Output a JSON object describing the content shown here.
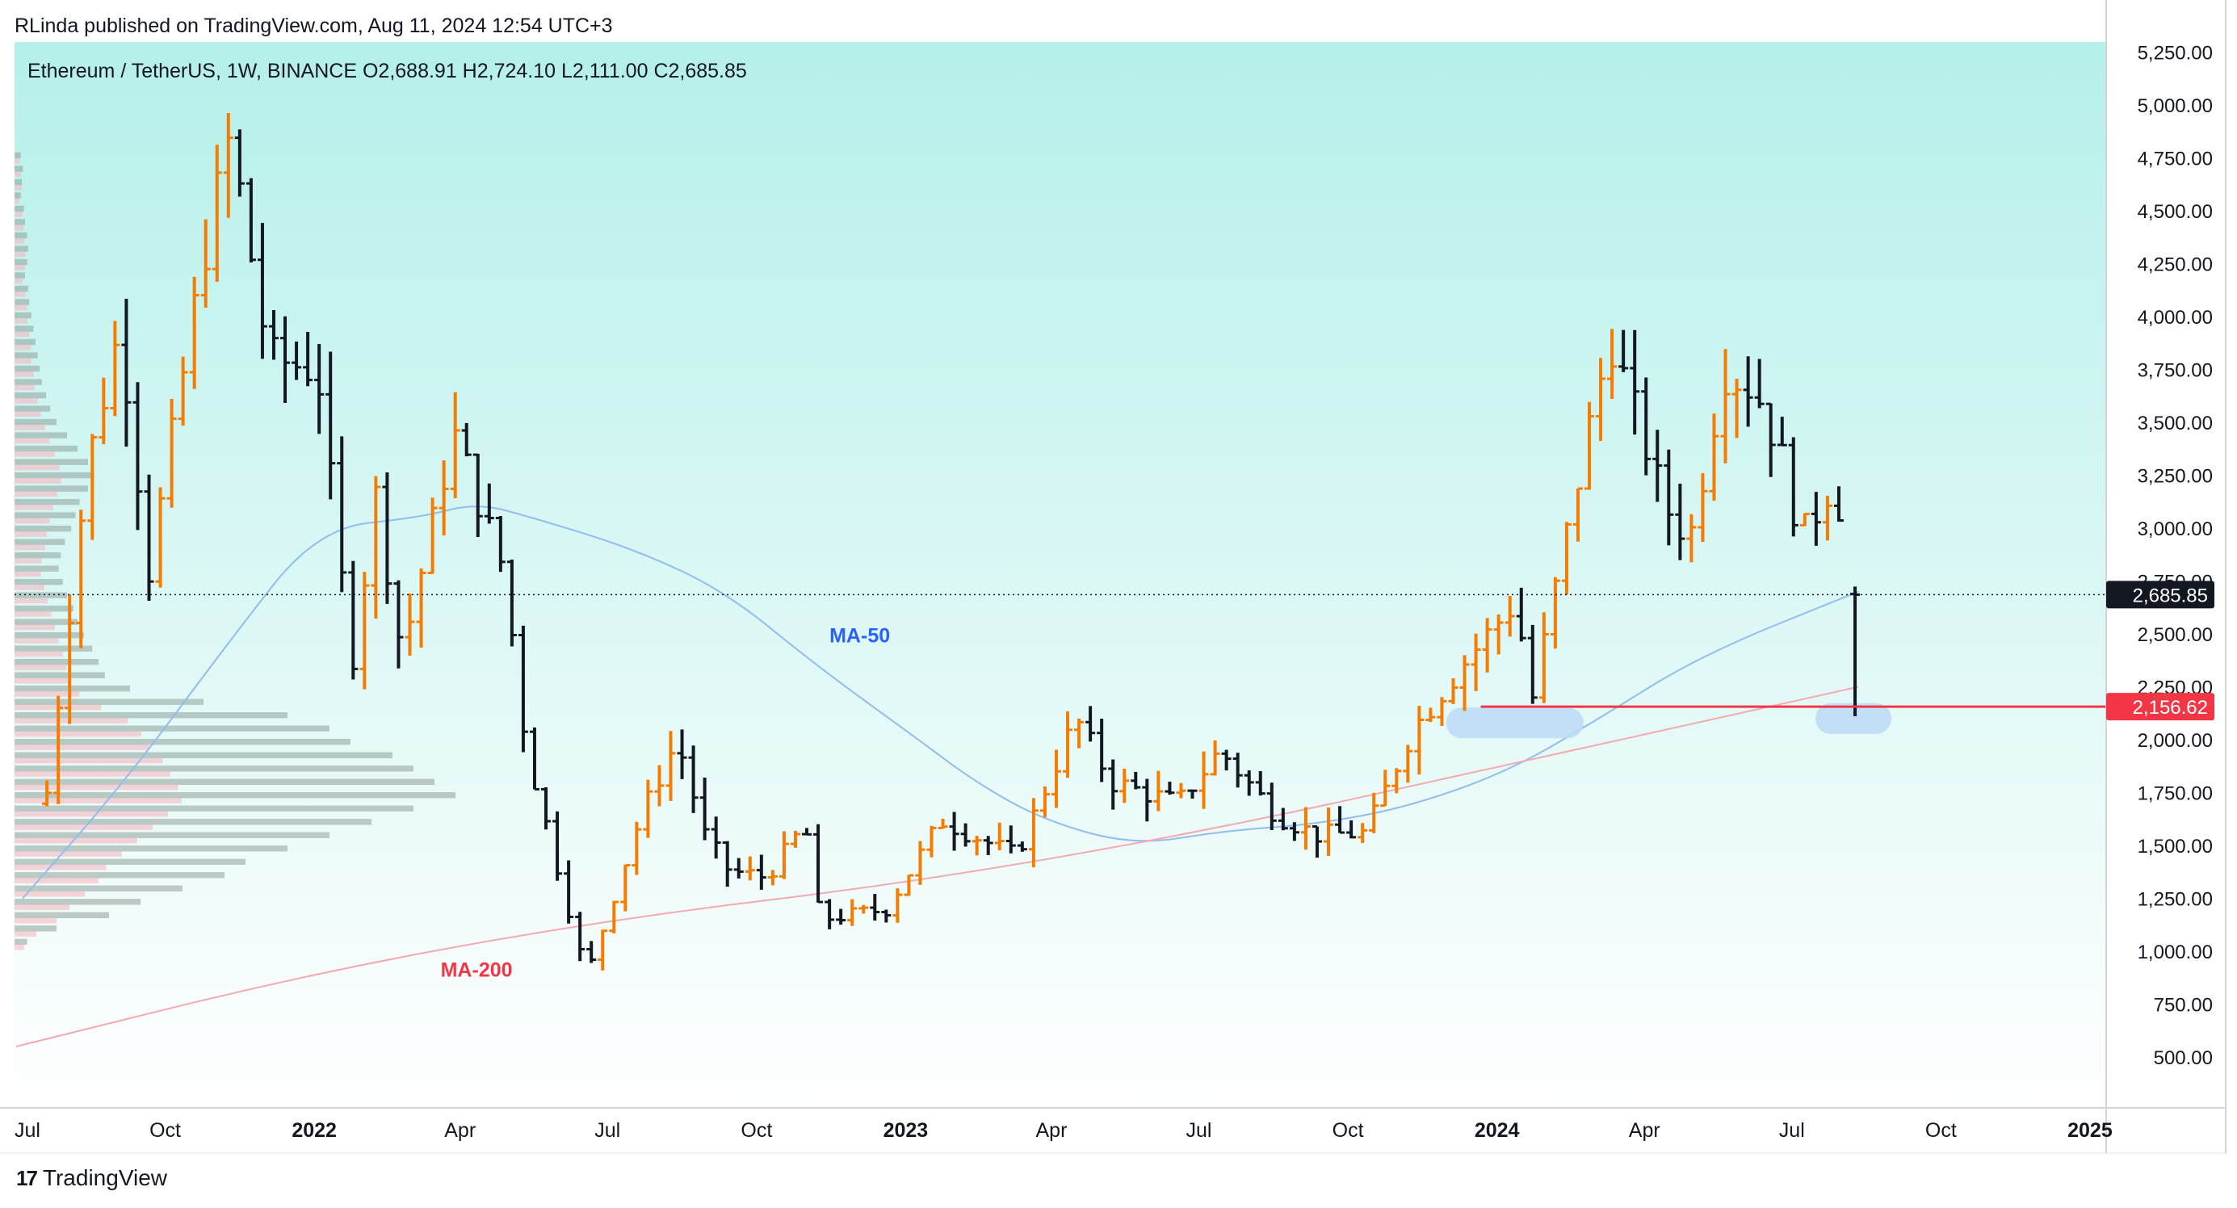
{
  "publisher_line": "RLinda published on TradingView.com, Aug 11, 2024 12:54 UTC+3",
  "footer": {
    "brand": "TradingView",
    "logo_icon": "tradingview-logo-icon"
  },
  "colors": {
    "background_top": "#b5f0ea",
    "background_bottom": "#ffffff",
    "up_bar": "#f57c00",
    "down_bar": "#131722",
    "ma50": "#90bdf0",
    "ma200": "#f4a9b0",
    "support_line": "#f23645",
    "highlight": "#bcdcf6",
    "volume_up": "#f6b8c0",
    "volume_down": "#8fa19b",
    "ma50_label": "#2962ff",
    "ma200_label": "#f23645",
    "price_label_dark": "#131722",
    "price_label_red": "#f23645"
  },
  "chart_data": {
    "type": "ohlc",
    "symbol": "Ethereum / TetherUS, 1W, BINANCE",
    "legend": {
      "open": "O2,688.91",
      "high": "H2,724.10",
      "low": "L2,111.00",
      "close": "C2,685.85"
    },
    "y_axis": {
      "ticks": [
        "500.00",
        "750.00",
        "1,000.00",
        "1,250.00",
        "1,500.00",
        "1,750.00",
        "2,000.00",
        "2,250.00",
        "2,500.00",
        "2,750.00",
        "3,000.00",
        "3,250.00",
        "3,500.00",
        "3,750.00",
        "4,000.00",
        "4,250.00",
        "4,500.00",
        "4,750.00",
        "5,000.00",
        "5,250.00"
      ],
      "range": [
        260,
        5260
      ]
    },
    "x_axis": {
      "start": "2021-07-01",
      "end": "2025-01-12",
      "labels": [
        {
          "text": "Jul",
          "date": "2021-07-01",
          "bold": false
        },
        {
          "text": "Oct",
          "date": "2021-10-01",
          "bold": false
        },
        {
          "text": "2022",
          "date": "2022-01-01",
          "bold": true
        },
        {
          "text": "Apr",
          "date": "2022-04-01",
          "bold": false
        },
        {
          "text": "Jul",
          "date": "2022-07-01",
          "bold": false
        },
        {
          "text": "Oct",
          "date": "2022-10-01",
          "bold": false
        },
        {
          "text": "2023",
          "date": "2023-01-01",
          "bold": true
        },
        {
          "text": "Apr",
          "date": "2023-04-01",
          "bold": false
        },
        {
          "text": "Jul",
          "date": "2023-07-01",
          "bold": false
        },
        {
          "text": "Oct",
          "date": "2023-10-01",
          "bold": false
        },
        {
          "text": "2024",
          "date": "2024-01-01",
          "bold": true
        },
        {
          "text": "Apr",
          "date": "2024-04-01",
          "bold": false
        },
        {
          "text": "Jul",
          "date": "2024-07-01",
          "bold": false
        },
        {
          "text": "Oct",
          "date": "2024-10-01",
          "bold": false
        },
        {
          "text": "2025",
          "date": "2025-01-01",
          "bold": true
        }
      ]
    },
    "keypoints": [
      [
        "2021-07-20",
        1750
      ],
      [
        "2021-08-14",
        3300
      ],
      [
        "2021-09-03",
        3950
      ],
      [
        "2021-09-21",
        2800
      ],
      [
        "2021-10-25",
        4300
      ],
      [
        "2021-11-10",
        4850
      ],
      [
        "2021-12-04",
        3800
      ],
      [
        "2022-01-03",
        3750
      ],
      [
        "2022-01-24",
        2350
      ],
      [
        "2022-02-08",
        3150
      ],
      [
        "2022-02-24",
        2400
      ],
      [
        "2022-03-28",
        3450
      ],
      [
        "2022-04-28",
        2800
      ],
      [
        "2022-05-12",
        1950
      ],
      [
        "2022-06-18",
        880
      ],
      [
        "2022-07-22",
        1650
      ],
      [
        "2022-08-13",
        2000
      ],
      [
        "2022-08-30",
        1550
      ],
      [
        "2022-09-14",
        1380
      ],
      [
        "2022-10-07",
        1350
      ],
      [
        "2022-10-31",
        1600
      ],
      [
        "2022-11-09",
        1150
      ],
      [
        "2022-12-20",
        1200
      ],
      [
        "2023-01-23",
        1620
      ],
      [
        "2023-03-10",
        1450
      ],
      [
        "2023-04-16",
        2100
      ],
      [
        "2023-05-08",
        1800
      ],
      [
        "2023-06-18",
        1700
      ],
      [
        "2023-07-14",
        1950
      ],
      [
        "2023-08-17",
        1650
      ],
      [
        "2023-09-11",
        1550
      ],
      [
        "2023-10-12",
        1560
      ],
      [
        "2023-11-10",
        2050
      ],
      [
        "2023-12-10",
        2350
      ],
      [
        "2024-01-12",
        2650
      ],
      [
        "2024-01-23",
        2200
      ],
      [
        "2024-02-26",
        3450
      ],
      [
        "2024-03-11",
        3900
      ],
      [
        "2024-04-14",
        3100
      ],
      [
        "2024-04-29",
        2950
      ],
      [
        "2024-05-20",
        3750
      ],
      [
        "2024-06-09",
        3650
      ],
      [
        "2024-06-24",
        3350
      ],
      [
        "2024-07-07",
        2950
      ],
      [
        "2024-07-28",
        3250
      ],
      [
        "2024-08-05",
        2700
      ],
      [
        "2024-08-11",
        2686
      ]
    ],
    "last": {
      "open": 2688.91,
      "high": 2724.1,
      "low": 2111.0,
      "close": 2685.85
    },
    "moving_averages": [
      {
        "name": "MA-50",
        "points": [
          [
            "2021-07-05",
            1250
          ],
          [
            "2021-09-06",
            1800
          ],
          [
            "2021-11-08",
            2450
          ],
          [
            "2022-01-03",
            3000
          ],
          [
            "2022-03-07",
            3050
          ],
          [
            "2022-04-11",
            3120
          ],
          [
            "2022-05-16",
            3050
          ],
          [
            "2022-07-18",
            2900
          ],
          [
            "2022-09-12",
            2700
          ],
          [
            "2022-11-07",
            2350
          ],
          [
            "2023-01-09",
            2000
          ],
          [
            "2023-02-13",
            1800
          ],
          [
            "2023-03-27",
            1620
          ],
          [
            "2023-05-22",
            1500
          ],
          [
            "2023-07-17",
            1570
          ],
          [
            "2023-09-11",
            1600
          ],
          [
            "2023-11-06",
            1680
          ],
          [
            "2024-01-08",
            1850
          ],
          [
            "2024-03-04",
            2100
          ],
          [
            "2024-05-06",
            2400
          ],
          [
            "2024-08-11",
            2700
          ]
        ]
      },
      {
        "name": "MA-200",
        "points": [
          [
            "2021-07-01",
            550
          ],
          [
            "2022-01-01",
            900
          ],
          [
            "2022-07-01",
            1150
          ],
          [
            "2023-01-01",
            1320
          ],
          [
            "2023-07-01",
            1560
          ],
          [
            "2024-01-01",
            1870
          ],
          [
            "2024-08-11",
            2250
          ]
        ]
      }
    ],
    "annotations": {
      "ma50_label": {
        "text": "MA-50",
        "date": "2022-11-15",
        "price": 2460
      },
      "ma200_label": {
        "text": "MA-200",
        "date": "2022-03-20",
        "price": 880
      },
      "current_price": {
        "text": "2,685.85",
        "price": 2685.85
      },
      "support": {
        "text": "2,156.62",
        "price": 2156.62,
        "from": "2023-12-22"
      },
      "support_zones": [
        {
          "date": "2024-01-12",
          "price": 2080
        },
        {
          "date": "2024-08-08",
          "price": 2100
        }
      ]
    },
    "volume_profile": {
      "price_rows_top": 4780,
      "price_rows_bottom": 1000,
      "rows": [
        [
          6,
          3
        ],
        [
          8,
          4
        ],
        [
          7,
          5
        ],
        [
          6,
          3
        ],
        [
          9,
          5
        ],
        [
          10,
          6
        ],
        [
          12,
          6
        ],
        [
          13,
          7
        ],
        [
          12,
          7
        ],
        [
          10,
          5
        ],
        [
          13,
          7
        ],
        [
          14,
          8
        ],
        [
          16,
          8
        ],
        [
          18,
          9
        ],
        [
          20,
          10
        ],
        [
          22,
          10
        ],
        [
          24,
          12
        ],
        [
          26,
          12
        ],
        [
          30,
          14
        ],
        [
          34,
          16
        ],
        [
          40,
          18
        ],
        [
          50,
          20
        ],
        [
          60,
          22
        ],
        [
          70,
          24
        ],
        [
          76,
          24
        ],
        [
          70,
          22
        ],
        [
          62,
          20
        ],
        [
          58,
          18
        ],
        [
          54,
          16
        ],
        [
          48,
          16
        ],
        [
          44,
          14
        ],
        [
          42,
          14
        ],
        [
          46,
          16
        ],
        [
          50,
          18
        ],
        [
          56,
          20
        ],
        [
          60,
          22
        ],
        [
          66,
          24
        ],
        [
          74,
          26
        ],
        [
          80,
          28
        ],
        [
          86,
          30
        ],
        [
          110,
          32
        ],
        [
          180,
          34
        ],
        [
          260,
          38
        ],
        [
          300,
          40
        ],
        [
          320,
          42
        ],
        [
          360,
          44
        ],
        [
          380,
          46
        ],
        [
          400,
          48
        ],
        [
          420,
          46
        ],
        [
          380,
          44
        ],
        [
          340,
          40
        ],
        [
          300,
          36
        ],
        [
          260,
          32
        ],
        [
          220,
          28
        ],
        [
          200,
          26
        ],
        [
          160,
          24
        ],
        [
          120,
          20
        ],
        [
          90,
          16
        ],
        [
          40,
          10
        ],
        [
          12,
          6
        ]
      ]
    }
  }
}
